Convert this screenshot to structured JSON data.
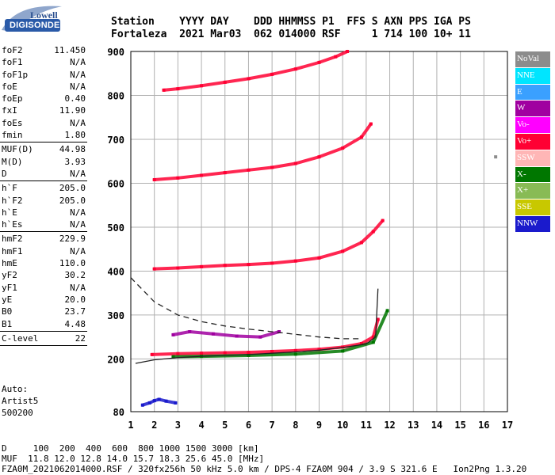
{
  "logo": {
    "top": "Lowell",
    "main": "DIGISONDE"
  },
  "header": {
    "line1": "Station    YYYY DAY    DDD HHMMSS P1  FFS S AXN PPS IGA PS",
    "line2": "Fortaleza  2021 Mar03  062 014000 RSF     1 714 100 10+ 11"
  },
  "params": [
    {
      "label": "foF2",
      "value": "11.450"
    },
    {
      "label": "foF1",
      "value": "N/A"
    },
    {
      "label": "foF1p",
      "value": "N/A"
    },
    {
      "label": "foE",
      "value": "N/A"
    },
    {
      "label": "foEp",
      "value": "0.40"
    },
    {
      "label": "fxI",
      "value": "11.90"
    },
    {
      "label": "foEs",
      "value": "N/A"
    },
    {
      "label": "fmin",
      "value": "1.80"
    },
    {
      "sep": true
    },
    {
      "label": "MUF(D)",
      "value": "44.98"
    },
    {
      "label": "M(D)",
      "value": "3.93"
    },
    {
      "label": "D",
      "value": "N/A"
    },
    {
      "sep": true
    },
    {
      "label": "h`F",
      "value": "205.0"
    },
    {
      "label": "h`F2",
      "value": "205.0"
    },
    {
      "label": "h`E",
      "value": "N/A"
    },
    {
      "label": "h`Es",
      "value": "N/A"
    },
    {
      "sep": true
    },
    {
      "label": "hmF2",
      "value": "229.9"
    },
    {
      "label": "hmF1",
      "value": "N/A"
    },
    {
      "label": "hmE",
      "value": "110.0"
    },
    {
      "label": "yF2",
      "value": "30.2"
    },
    {
      "label": "yF1",
      "value": "N/A"
    },
    {
      "label": "yE",
      "value": "20.0"
    },
    {
      "label": "B0",
      "value": "23.7"
    },
    {
      "label": "B1",
      "value": "4.48"
    },
    {
      "sep": true
    },
    {
      "label": "C-level",
      "value": "22"
    },
    {
      "sep": true
    }
  ],
  "auto": {
    "line1": "Auto:",
    "line2": "Artist5",
    "line3": "500200"
  },
  "bottom": {
    "line1": "D     100  200  400  600  800 1000 1500 3000 [km]",
    "line2": "MUF  11.8 12.0 12.8 14.0 15.7 18.3 25.6 45.0 [MHz]",
    "line3": "FZA0M_2021062014000.RSF / 320fx256h 50 kHz 5.0 km / DPS-4 FZA0M 904 / 3.9 S 321.6 E   Ion2Png 1.3.20"
  },
  "legend": [
    {
      "label": "NoVal",
      "color": "#8c8c8c"
    },
    {
      "label": "NNE",
      "color": "#00e5ff"
    },
    {
      "label": "E",
      "color": "#3aa0ff"
    },
    {
      "label": "W",
      "color": "#a000a0"
    },
    {
      "label": "Vo-",
      "color": "#ff00ff"
    },
    {
      "label": "Vo+",
      "color": "#ff0033"
    },
    {
      "label": "SSW",
      "color": "#ffb6b6"
    },
    {
      "label": "X-",
      "color": "#007700"
    },
    {
      "label": "X+",
      "color": "#88bb55"
    },
    {
      "label": "SSE",
      "color": "#c8c800"
    },
    {
      "label": "NNW",
      "color": "#1a1acc"
    }
  ],
  "chart_data": {
    "type": "scatter",
    "xlabel": "",
    "ylabel": "",
    "xlim": [
      1,
      17
    ],
    "ylim": [
      80,
      900
    ],
    "x_ticks": [
      1,
      2,
      3,
      4,
      5,
      6,
      7,
      8,
      9,
      10,
      11,
      12,
      13,
      14,
      15,
      16,
      17
    ],
    "y_ticks": [
      80,
      200,
      300,
      400,
      500,
      600,
      700,
      800,
      900
    ],
    "grid": true,
    "series": [
      {
        "name": "Vo+",
        "x": [
          1.9,
          3,
          4,
          5,
          6,
          7,
          8,
          9,
          10,
          10.8,
          11.3,
          11.5
        ],
        "y": [
          210,
          212,
          213,
          214,
          215,
          217,
          219,
          222,
          227,
          235,
          250,
          290
        ]
      },
      {
        "name": "X-",
        "x": [
          2.8,
          4,
          6,
          8,
          10,
          11.3,
          11.9
        ],
        "y": [
          205,
          206,
          208,
          211,
          218,
          238,
          310
        ]
      },
      {
        "name": "W",
        "x": [
          2.8,
          3.5,
          4.5,
          5.5,
          6.5,
          7.3
        ],
        "y": [
          255,
          262,
          257,
          252,
          250,
          262
        ]
      },
      {
        "name": "Vo+",
        "x": [
          2,
          3,
          4,
          5,
          6,
          7,
          8,
          9,
          10,
          10.8,
          11.3,
          11.7
        ],
        "y": [
          405,
          407,
          410,
          413,
          415,
          418,
          423,
          430,
          445,
          465,
          490,
          515
        ]
      },
      {
        "name": "Vo+",
        "x": [
          2,
          3,
          4,
          5,
          6,
          7,
          8,
          9,
          10,
          10.8,
          11.2
        ],
        "y": [
          608,
          612,
          618,
          624,
          630,
          636,
          645,
          660,
          680,
          705,
          735
        ]
      },
      {
        "name": "Vo+",
        "x": [
          2.4,
          3,
          4,
          5,
          6,
          7,
          8,
          9,
          9.7,
          10.2
        ],
        "y": [
          812,
          815,
          822,
          830,
          838,
          848,
          860,
          875,
          888,
          900
        ]
      },
      {
        "name": "NNW",
        "x": [
          1.5,
          1.8,
          2,
          2.2,
          2.5,
          2.9
        ],
        "y": [
          95,
          100,
          105,
          108,
          104,
          100
        ]
      },
      {
        "name": "NoVal",
        "x": [
          16.5
        ],
        "y": [
          660
        ]
      }
    ],
    "profile_curve": {
      "x": [
        1.2,
        2,
        3,
        4,
        5,
        6,
        7,
        8,
        9,
        10,
        11,
        11.4,
        11.5
      ],
      "y": [
        190,
        198,
        203,
        206,
        208,
        210,
        213,
        216,
        220,
        226,
        234,
        250,
        360
      ]
    },
    "dashed_curve": {
      "x": [
        1,
        2,
        3,
        4,
        5,
        6,
        7,
        8,
        9,
        10,
        10.8
      ],
      "y": [
        385,
        330,
        300,
        285,
        275,
        268,
        262,
        256,
        250,
        246,
        246
      ]
    }
  }
}
